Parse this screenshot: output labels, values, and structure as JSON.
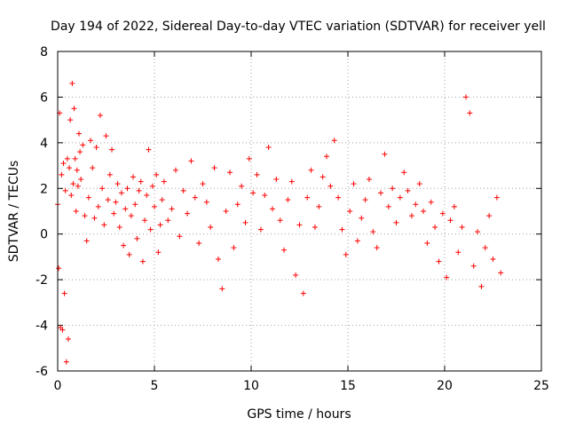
{
  "chart_data": {
    "type": "scatter",
    "title": "Day 194 of 2022, Sidereal Day-to-day VTEC variation (SDTVAR) for receiver yell",
    "xlabel": "GPS time / hours",
    "ylabel": "SDTVAR / TECUs",
    "xlim": [
      0,
      25
    ],
    "ylim": [
      -6,
      8
    ],
    "xticks": [
      "0",
      "5",
      "10",
      "15",
      "20",
      "25"
    ],
    "yticks": [
      "-6",
      "-4",
      "-2",
      "0",
      "2",
      "4",
      "6",
      "8"
    ],
    "grid": true,
    "marker": "+",
    "series_color": "#ff0000",
    "series": [
      {
        "name": "SDTVAR",
        "x": [
          0.0,
          0.05,
          0.1,
          0.15,
          0.2,
          0.25,
          0.3,
          0.35,
          0.4,
          0.45,
          0.5,
          0.55,
          0.6,
          0.65,
          0.7,
          0.75,
          0.8,
          0.85,
          0.9,
          0.95,
          1.0,
          1.05,
          1.1,
          1.15,
          1.2,
          1.3,
          1.4,
          1.5,
          1.6,
          1.7,
          1.8,
          1.9,
          2.0,
          2.1,
          2.2,
          2.3,
          2.4,
          2.5,
          2.6,
          2.7,
          2.8,
          2.9,
          3.0,
          3.1,
          3.2,
          3.3,
          3.4,
          3.5,
          3.6,
          3.7,
          3.8,
          3.9,
          4.0,
          4.1,
          4.2,
          4.3,
          4.4,
          4.5,
          4.6,
          4.7,
          4.8,
          4.9,
          5.0,
          5.1,
          5.2,
          5.3,
          5.4,
          5.5,
          5.7,
          5.9,
          6.1,
          6.3,
          6.5,
          6.7,
          6.9,
          7.1,
          7.3,
          7.5,
          7.7,
          7.9,
          8.1,
          8.3,
          8.5,
          8.7,
          8.9,
          9.1,
          9.3,
          9.5,
          9.7,
          9.9,
          10.1,
          10.3,
          10.5,
          10.7,
          10.9,
          11.1,
          11.3,
          11.5,
          11.7,
          11.9,
          12.1,
          12.3,
          12.5,
          12.7,
          12.9,
          13.1,
          13.3,
          13.5,
          13.7,
          13.9,
          14.1,
          14.3,
          14.5,
          14.7,
          14.9,
          15.1,
          15.3,
          15.5,
          15.7,
          15.9,
          16.1,
          16.3,
          16.5,
          16.7,
          16.9,
          17.1,
          17.3,
          17.5,
          17.7,
          17.9,
          18.1,
          18.3,
          18.5,
          18.7,
          18.9,
          19.1,
          19.3,
          19.5,
          19.7,
          19.9,
          20.1,
          20.3,
          20.5,
          20.7,
          20.9,
          21.1,
          21.3,
          21.5,
          21.7,
          21.9,
          22.1,
          22.3,
          22.5,
          22.7,
          22.9
        ],
        "y": [
          1.3,
          -1.5,
          5.3,
          -4.1,
          2.6,
          -4.2,
          3.1,
          -2.6,
          1.9,
          -5.6,
          3.3,
          -4.6,
          2.9,
          5.0,
          1.7,
          6.6,
          2.2,
          5.5,
          3.3,
          1.0,
          2.8,
          2.1,
          4.4,
          3.6,
          2.4,
          3.9,
          0.8,
          -0.3,
          1.6,
          4.1,
          2.9,
          0.7,
          3.8,
          1.2,
          5.2,
          2.0,
          0.4,
          4.3,
          1.5,
          2.6,
          3.7,
          0.9,
          1.4,
          2.2,
          0.3,
          1.8,
          -0.5,
          1.1,
          2.0,
          -0.9,
          0.8,
          2.5,
          1.3,
          -0.2,
          1.9,
          2.3,
          -1.2,
          0.6,
          1.7,
          3.7,
          0.2,
          2.1,
          1.2,
          2.6,
          -0.8,
          0.4,
          1.5,
          2.3,
          0.6,
          1.1,
          2.8,
          -0.1,
          1.9,
          0.9,
          3.2,
          1.6,
          -0.4,
          2.2,
          1.4,
          0.3,
          2.9,
          -1.1,
          -2.4,
          1.0,
          2.7,
          -0.6,
          1.3,
          2.1,
          0.5,
          3.3,
          1.8,
          2.6,
          0.2,
          1.7,
          3.8,
          1.1,
          2.4,
          0.6,
          -0.7,
          1.5,
          2.3,
          -1.8,
          0.4,
          -2.6,
          1.6,
          2.8,
          0.3,
          1.2,
          2.5,
          3.4,
          2.1,
          4.1,
          1.6,
          0.2,
          -0.9,
          1.0,
          2.2,
          -0.3,
          0.7,
          1.5,
          2.4,
          0.1,
          -0.6,
          1.8,
          3.5,
          1.2,
          2.0,
          0.5,
          1.6,
          2.7,
          1.9,
          0.8,
          1.3,
          2.2,
          1.0,
          -0.4,
          1.4,
          0.3,
          -1.2,
          0.9,
          -1.9,
          0.6,
          1.2,
          -0.8,
          0.3,
          6.0,
          5.3,
          -1.4,
          0.1,
          -2.3,
          -0.6,
          0.8,
          -1.1,
          1.6,
          -1.7
        ]
      }
    ]
  }
}
